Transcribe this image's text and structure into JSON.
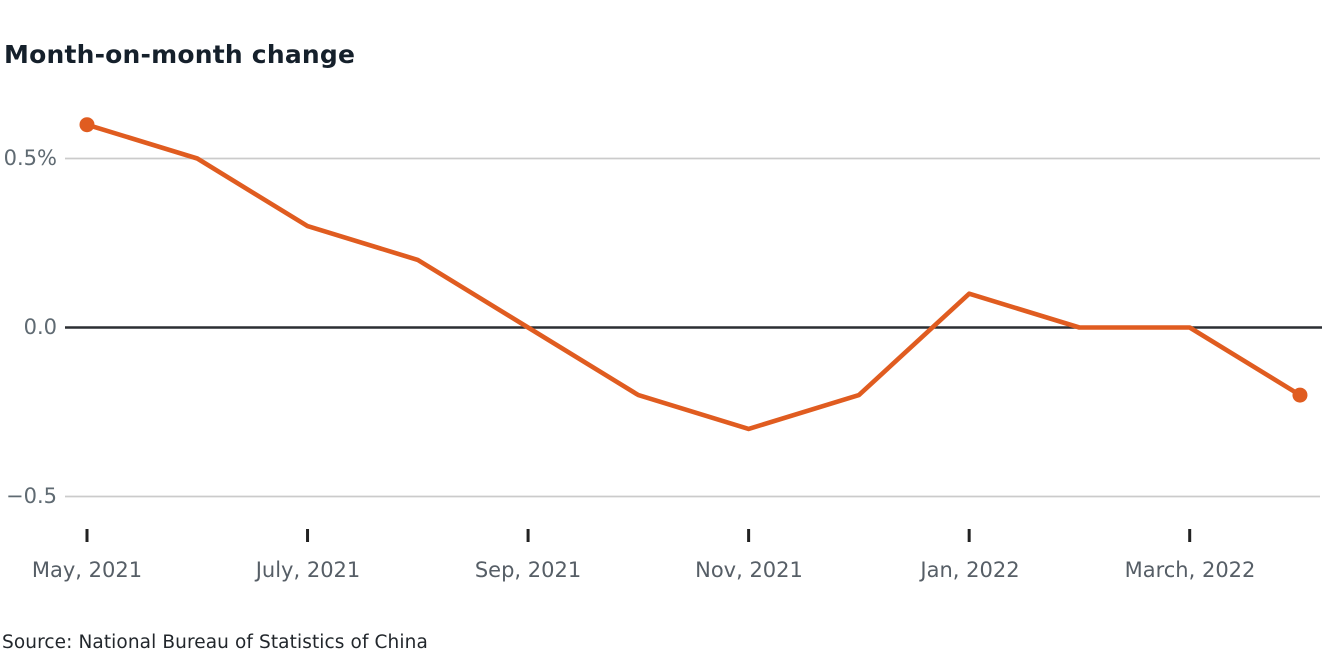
{
  "header": {
    "title": "Month-on-month change"
  },
  "footer": {
    "source": "Source: National Bureau of Statistics of China"
  },
  "chart_data": {
    "type": "line",
    "title": "Month-on-month change",
    "xlabel": "",
    "ylabel": "",
    "unit": "%",
    "x": [
      "May, 2021",
      "June, 2021",
      "July, 2021",
      "Aug, 2021",
      "Sep, 2021",
      "Oct, 2021",
      "Nov, 2021",
      "Dec, 2021",
      "Jan, 2022",
      "Feb, 2022",
      "March, 2022",
      "April, 2022"
    ],
    "series": [
      {
        "name": "Month-on-month change",
        "values": [
          0.6,
          0.5,
          0.3,
          0.2,
          0.0,
          -0.2,
          -0.3,
          -0.2,
          0.1,
          0.0,
          0.0,
          -0.2
        ]
      }
    ],
    "x_tick_labels": [
      "May, 2021",
      "July, 2021",
      "Sep, 2021",
      "Nov, 2021",
      "Jan, 2022",
      "March, 2022"
    ],
    "x_tick_indices": [
      0,
      2,
      4,
      6,
      8,
      10
    ],
    "y_ticks": [
      {
        "label": "0.5%",
        "value": 0.5
      },
      {
        "label": "0.0",
        "value": 0.0
      },
      {
        "label": "−0.5",
        "value": -0.5
      }
    ],
    "ylim": [
      -0.65,
      0.72
    ],
    "grid": "horizontal",
    "legend_position": "none",
    "endpoint_markers": true,
    "colors": {
      "line": "#e05c20",
      "marker": "#e05c20",
      "zero_line": "#2b2f33",
      "gridline": "#cbcbcb",
      "tick": "#222222"
    }
  }
}
